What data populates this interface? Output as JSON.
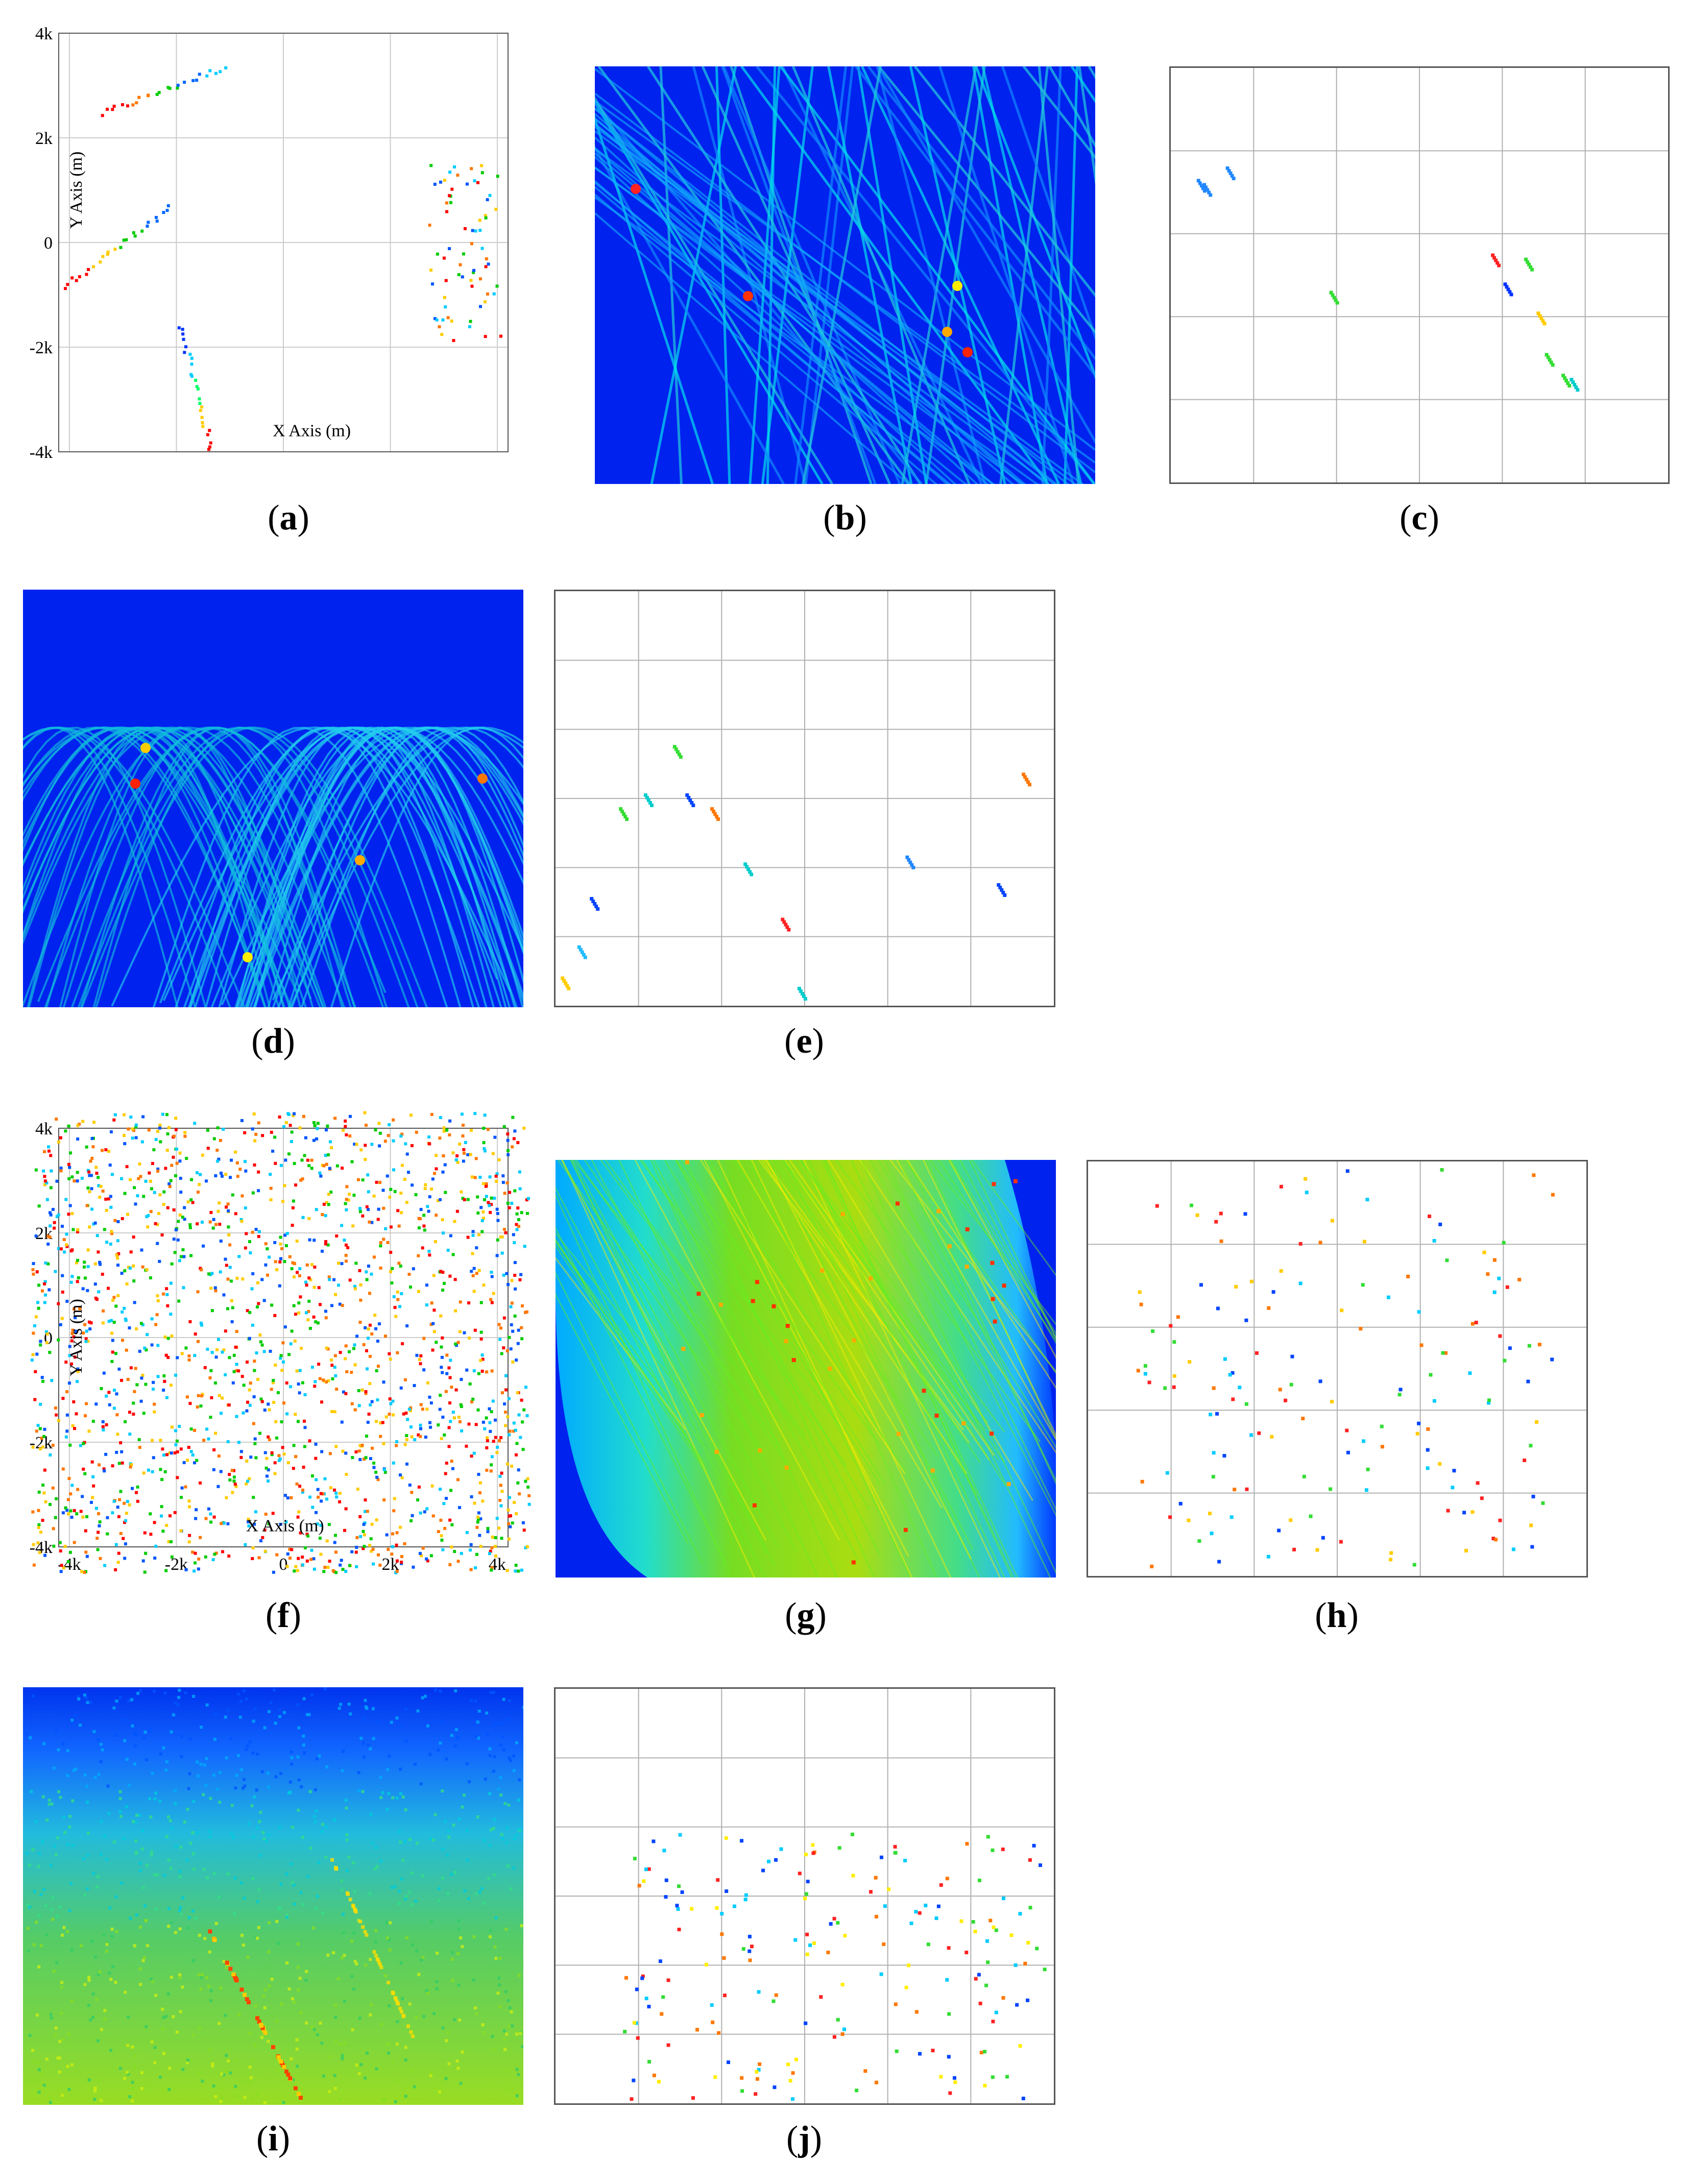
{
  "captions": [
    "a",
    "b",
    "c",
    "d",
    "e",
    "f",
    "g",
    "h",
    "i",
    "j"
  ],
  "chart_data": [
    {
      "id": "a",
      "type": "scatter",
      "title": "",
      "xlabel": "X Axis (m)",
      "ylabel": "Y Axis (m)",
      "xlim": [
        -4200,
        4200
      ],
      "ylim": [
        -4000,
        4000
      ],
      "grid": true,
      "xticks": [
        "-4k",
        "-2k",
        "0",
        "2k",
        "4k"
      ],
      "xtick_values": [
        -4000,
        -2000,
        0,
        2000,
        4000
      ],
      "yticks": [
        "4k",
        "2k",
        "0",
        "-2k",
        "-4k"
      ],
      "ytick_values": [
        4000,
        2000,
        0,
        -2000,
        -4000
      ],
      "segments": [
        {
          "from": [
            -3400,
            2450
          ],
          "to": [
            -1100,
            3350
          ],
          "colors": [
            "#ff0000",
            "#ff7700",
            "#00cc00",
            "#0066ff",
            "#00ccff"
          ]
        },
        {
          "from": [
            -4100,
            -850
          ],
          "to": [
            -2100,
            650
          ],
          "colors": [
            "#ff0000",
            "#ffcc00",
            "#00cc00",
            "#0066ff"
          ]
        },
        {
          "from": [
            -1900,
            -1600
          ],
          "to": [
            -1350,
            -4000
          ],
          "colors": [
            "#0033ff",
            "#00ccff",
            "#00ff66",
            "#ffcc00",
            "#ff0000"
          ]
        }
      ],
      "clusters": [
        {
          "center": [
            3400,
            -200
          ],
          "spread": [
            700,
            1700
          ],
          "count": 70
        }
      ]
    },
    {
      "id": "b",
      "type": "heatmap",
      "title": "",
      "xlabel": "",
      "ylabel": "",
      "pattern": "crossing straight lines (Hough-type parameter space)"
    },
    {
      "id": "c",
      "type": "scatter",
      "title": "",
      "xlabel": "",
      "ylabel": "",
      "grid": true,
      "xlim": [
        0,
        6
      ],
      "ylim": [
        0,
        5
      ],
      "points": [
        {
          "x": 0.35,
          "y": 3.6,
          "c": "#2288ff"
        },
        {
          "x": 0.42,
          "y": 3.55,
          "c": "#2288ff"
        },
        {
          "x": 0.7,
          "y": 3.75,
          "c": "#2288ff"
        },
        {
          "x": 1.95,
          "y": 2.25,
          "c": "#33dd33"
        },
        {
          "x": 3.9,
          "y": 2.7,
          "c": "#ff2222"
        },
        {
          "x": 4.05,
          "y": 2.35,
          "c": "#0033ff"
        },
        {
          "x": 4.3,
          "y": 2.65,
          "c": "#33dd33"
        },
        {
          "x": 4.45,
          "y": 2.0,
          "c": "#ffcc00"
        },
        {
          "x": 4.55,
          "y": 1.5,
          "c": "#33dd33"
        },
        {
          "x": 4.75,
          "y": 1.25,
          "c": "#33dd33"
        },
        {
          "x": 4.85,
          "y": 1.2,
          "c": "#00cccc"
        }
      ]
    },
    {
      "id": "d",
      "type": "heatmap",
      "title": "",
      "xlabel": "",
      "ylabel": "",
      "pattern": "overlapping sinusoidal arcs"
    },
    {
      "id": "e",
      "type": "scatter",
      "title": "",
      "xlabel": "",
      "ylabel": "",
      "grid": true,
      "xlim": [
        0,
        6
      ],
      "ylim": [
        0,
        6
      ],
      "points": [
        {
          "x": 0.1,
          "y": 0.35,
          "c": "#ffcc00"
        },
        {
          "x": 0.3,
          "y": 0.8,
          "c": "#22bbff"
        },
        {
          "x": 0.45,
          "y": 1.5,
          "c": "#0044ff"
        },
        {
          "x": 0.8,
          "y": 2.8,
          "c": "#33dd33"
        },
        {
          "x": 1.1,
          "y": 3.0,
          "c": "#00cccc"
        },
        {
          "x": 1.45,
          "y": 3.7,
          "c": "#33dd33"
        },
        {
          "x": 1.6,
          "y": 3.0,
          "c": "#0044ff"
        },
        {
          "x": 1.9,
          "y": 2.8,
          "c": "#ff7700"
        },
        {
          "x": 2.3,
          "y": 2.0,
          "c": "#00cccc"
        },
        {
          "x": 2.75,
          "y": 1.2,
          "c": "#ff2222"
        },
        {
          "x": 2.95,
          "y": 0.2,
          "c": "#00cccc"
        },
        {
          "x": 4.25,
          "y": 2.1,
          "c": "#2288ff"
        },
        {
          "x": 5.35,
          "y": 1.7,
          "c": "#0044ff"
        },
        {
          "x": 5.65,
          "y": 3.3,
          "c": "#ff7700"
        }
      ]
    },
    {
      "id": "f",
      "type": "scatter",
      "title": "",
      "xlabel": "X Axis (m)",
      "ylabel": "Y Axis (m)",
      "xlim": [
        -4200,
        4200
      ],
      "ylim": [
        -4000,
        4000
      ],
      "grid": true,
      "xticks": [
        "-4k",
        "-2k",
        "0",
        "2k",
        "4k"
      ],
      "xtick_values": [
        -4000,
        -2000,
        0,
        2000,
        4000
      ],
      "yticks": [
        "4k",
        "2k",
        "0",
        "-2k",
        "-4k"
      ],
      "ytick_values": [
        4000,
        2000,
        0,
        -2000,
        -4000
      ],
      "random_points": {
        "count": 1900,
        "xrange": [
          -4700,
          4600
        ],
        "yrange": [
          -4500,
          4300
        ],
        "colors": [
          "#ff0000",
          "#00cc00",
          "#0055ff",
          "#00ccff",
          "#ffcc00",
          "#ff7700"
        ]
      }
    },
    {
      "id": "g",
      "type": "heatmap",
      "title": "",
      "xlabel": "",
      "ylabel": "",
      "pattern": "dense diagonal band of lines"
    },
    {
      "id": "h",
      "type": "scatter",
      "title": "",
      "xlabel": "",
      "ylabel": "",
      "grid": true,
      "xlim": [
        0,
        6
      ],
      "ylim": [
        0,
        5
      ],
      "random_points": {
        "count": 160,
        "xrange": [
          0.6,
          5.6
        ],
        "yrange": [
          0.1,
          4.9
        ],
        "colors": [
          "#33dd33",
          "#00ccff",
          "#0044ff",
          "#ff2222",
          "#ff7700",
          "#ffcc00"
        ]
      }
    },
    {
      "id": "i",
      "type": "heatmap",
      "title": "",
      "xlabel": "",
      "ylabel": "",
      "pattern": "noisy sinusoidal accumulator"
    },
    {
      "id": "j",
      "type": "scatter",
      "title": "",
      "xlabel": "",
      "ylabel": "",
      "grid": true,
      "xlim": [
        0,
        6
      ],
      "ylim": [
        0,
        6
      ],
      "random_points": {
        "count": 190,
        "xrange": [
          0.8,
          5.9
        ],
        "yrange": [
          0.05,
          3.9
        ],
        "colors": [
          "#ffee00",
          "#33dd33",
          "#00ccff",
          "#0044ff",
          "#ff2222",
          "#ff7700"
        ]
      }
    }
  ]
}
